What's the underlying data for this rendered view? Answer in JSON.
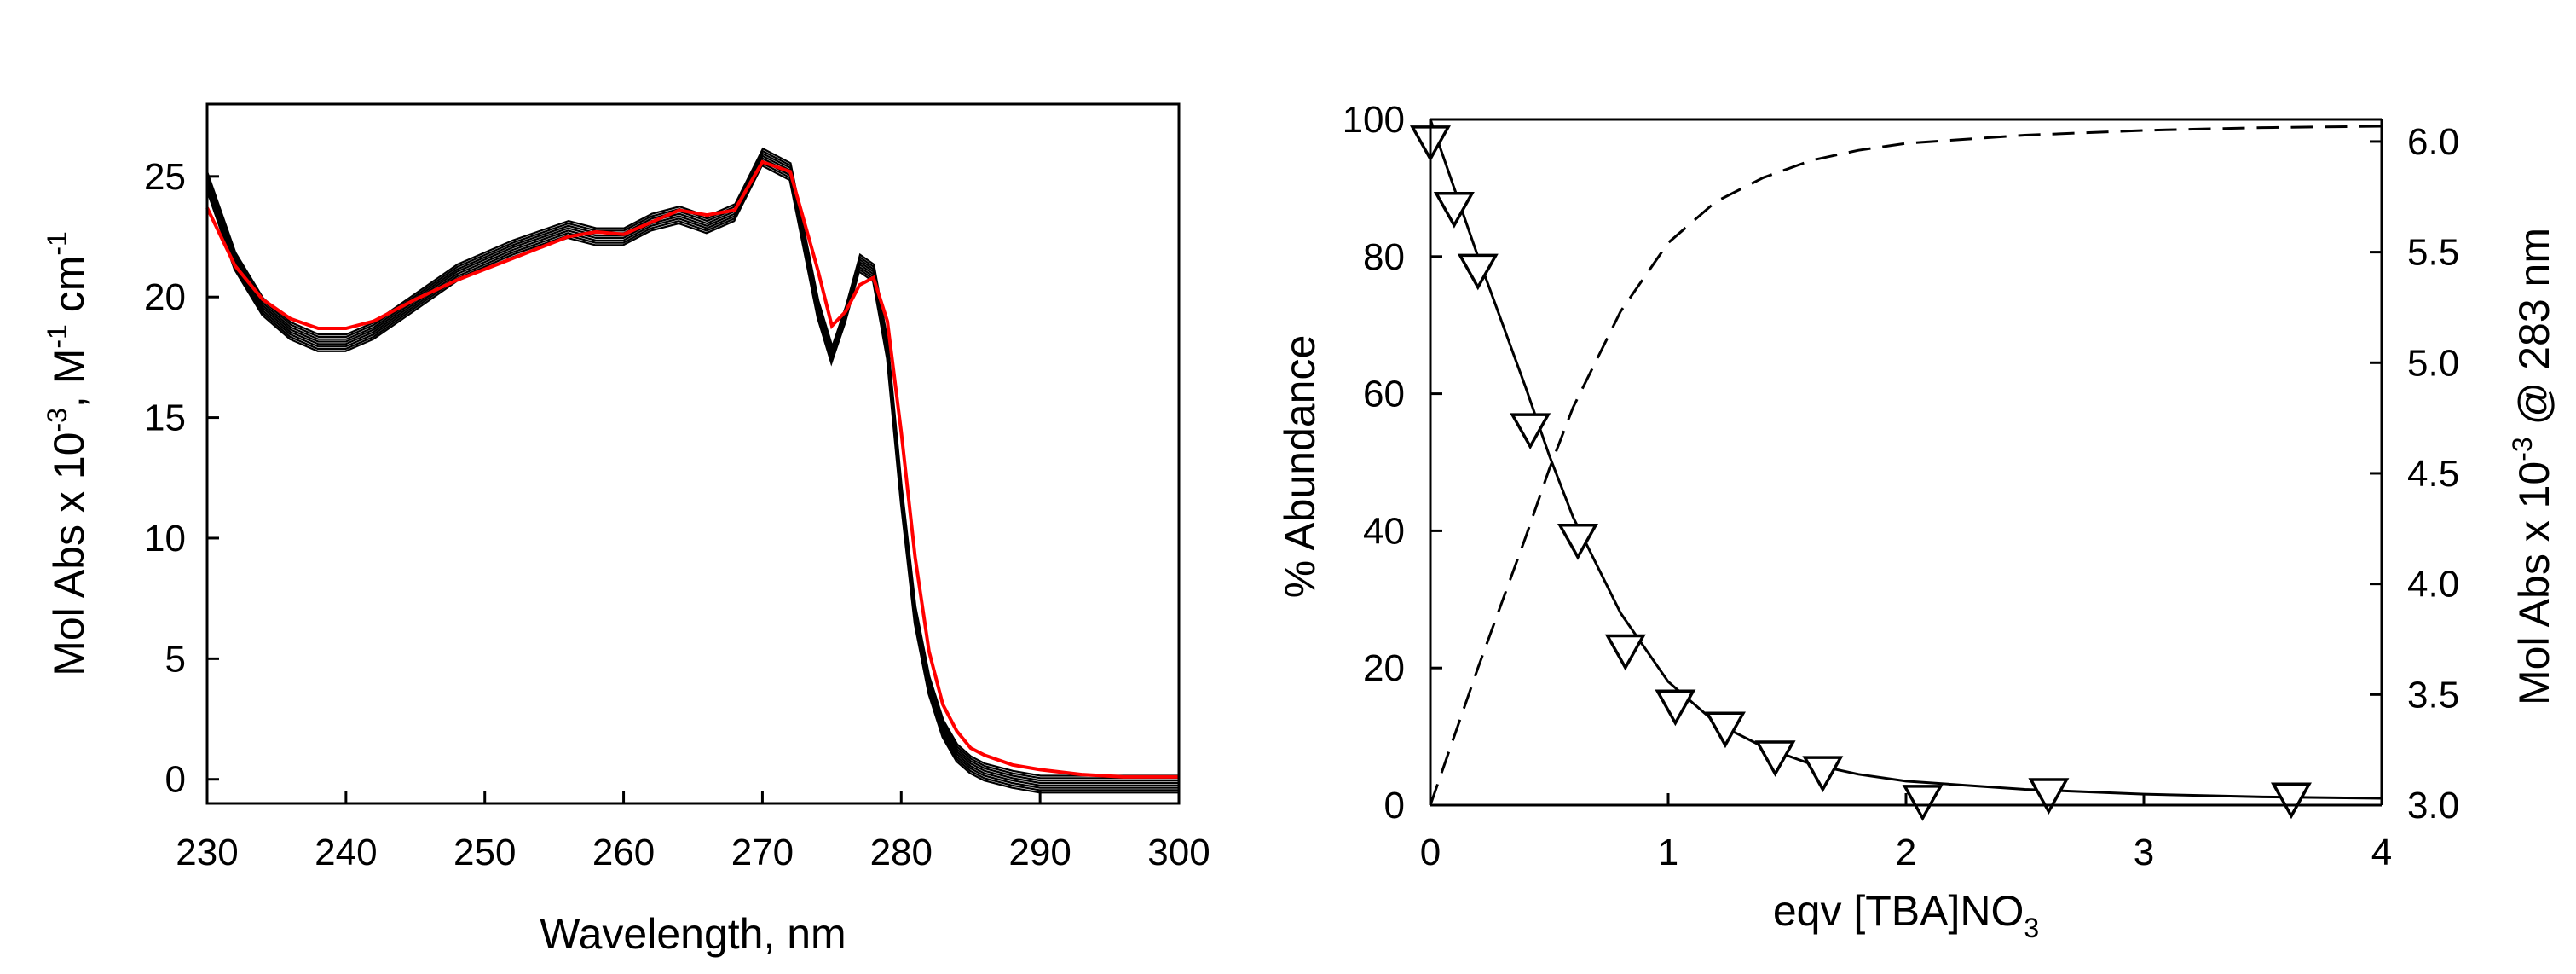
{
  "colors": {
    "black": "#000000",
    "red": "#ff0000",
    "background": "#ffffff"
  },
  "chart_data": [
    {
      "type": "line",
      "panel": "left",
      "title": "",
      "xlabel": "Wavelength, nm",
      "ylabel_parts": [
        "Mol Abs x 10",
        "-3",
        ", M",
        "-1",
        " cm",
        "-1"
      ],
      "xlim": [
        230,
        300
      ],
      "ylim": [
        -1,
        28
      ],
      "xticks": [
        "230",
        "240",
        "250",
        "260",
        "270",
        "280",
        "290",
        "300"
      ],
      "yticks": [
        "0",
        "5",
        "10",
        "15",
        "20",
        "25"
      ],
      "grid": false,
      "x": [
        230,
        232,
        234,
        236,
        238,
        240,
        242,
        245,
        248,
        252,
        256,
        258,
        260,
        262,
        264,
        266,
        268,
        270,
        272,
        274,
        275,
        276,
        277,
        278,
        279,
        280,
        281,
        282,
        283,
        284,
        285,
        286,
        288,
        290,
        293,
        296,
        300
      ],
      "series": [
        {
          "name": "titration spectra (black, multiple)",
          "color": "#000000",
          "values": [
            24.8,
            21.5,
            19.6,
            18.6,
            18.1,
            18.1,
            18.6,
            19.8,
            21.0,
            22.0,
            22.8,
            22.5,
            22.5,
            23.1,
            23.4,
            23.0,
            23.5,
            25.8,
            25.2,
            19.5,
            17.6,
            19.3,
            21.4,
            21.0,
            17.8,
            11.8,
            6.8,
            3.9,
            2.1,
            1.1,
            0.6,
            0.3,
            0.0,
            -0.2,
            -0.2,
            -0.2,
            -0.2
          ]
        },
        {
          "name": "final spectrum (red)",
          "color": "#ff0000",
          "values": [
            23.7,
            21.3,
            19.9,
            19.1,
            18.7,
            18.7,
            19.0,
            19.9,
            20.7,
            21.6,
            22.5,
            22.7,
            22.6,
            23.1,
            23.6,
            23.4,
            23.6,
            25.6,
            25.2,
            21.1,
            18.8,
            19.4,
            20.5,
            20.8,
            19.0,
            14.4,
            9.2,
            5.3,
            3.1,
            2.0,
            1.3,
            1.0,
            0.6,
            0.4,
            0.2,
            0.1,
            0.1
          ]
        }
      ]
    },
    {
      "type": "line+scatter",
      "panel": "right",
      "title": "",
      "xlabel_parts": [
        "eqv [TBA]NO",
        "3"
      ],
      "ylabel": "% Abundance",
      "y2label_parts": [
        "Mol Abs x 10",
        "-3",
        " @ 283 nm"
      ],
      "xlim": [
        0,
        4
      ],
      "ylim": [
        0,
        100
      ],
      "y2lim": [
        3.0,
        6.1
      ],
      "xticks": [
        "0",
        "1",
        "2",
        "3",
        "4"
      ],
      "yticks": [
        "0",
        "20",
        "40",
        "60",
        "80",
        "100"
      ],
      "y2ticks": [
        "3.0",
        "3.5",
        "4.0",
        "4.5",
        "5.0",
        "5.5",
        "6.0"
      ],
      "grid": false,
      "series": [
        {
          "name": "% Abundance free (solid)",
          "style": "solid",
          "axis": "left",
          "x": [
            0,
            0.2,
            0.4,
            0.5,
            0.6,
            0.8,
            1.0,
            1.2,
            1.4,
            1.6,
            1.8,
            2.0,
            2.5,
            3.0,
            3.5,
            4.0
          ],
          "values": [
            100,
            80,
            61,
            51,
            42,
            28,
            18,
            12,
            8.5,
            6,
            4.5,
            3.5,
            2.3,
            1.6,
            1.2,
            1.0
          ]
        },
        {
          "name": "% Abundance complex (dashed)",
          "style": "dashed",
          "axis": "left",
          "x": [
            0,
            0.2,
            0.4,
            0.5,
            0.6,
            0.8,
            1.0,
            1.2,
            1.4,
            1.6,
            1.8,
            2.0,
            2.5,
            3.0,
            3.5,
            4.0
          ],
          "values": [
            0,
            20,
            39,
            49,
            58,
            72,
            82,
            88,
            91.5,
            94,
            95.5,
            96.5,
            97.7,
            98.4,
            98.8,
            99.0
          ]
        },
        {
          "name": "Mol Abs @ 283 nm (triangles)",
          "marker": "down-triangle",
          "axis": "right",
          "x": [
            0.0,
            0.1,
            0.2,
            0.42,
            0.62,
            0.82,
            1.03,
            1.24,
            1.45,
            1.65,
            2.07,
            2.6,
            3.62
          ],
          "values": [
            6.0,
            5.7,
            5.42,
            4.7,
            4.2,
            3.7,
            3.45,
            3.35,
            3.22,
            3.15,
            3.02,
            3.05,
            3.03
          ]
        }
      ]
    }
  ]
}
